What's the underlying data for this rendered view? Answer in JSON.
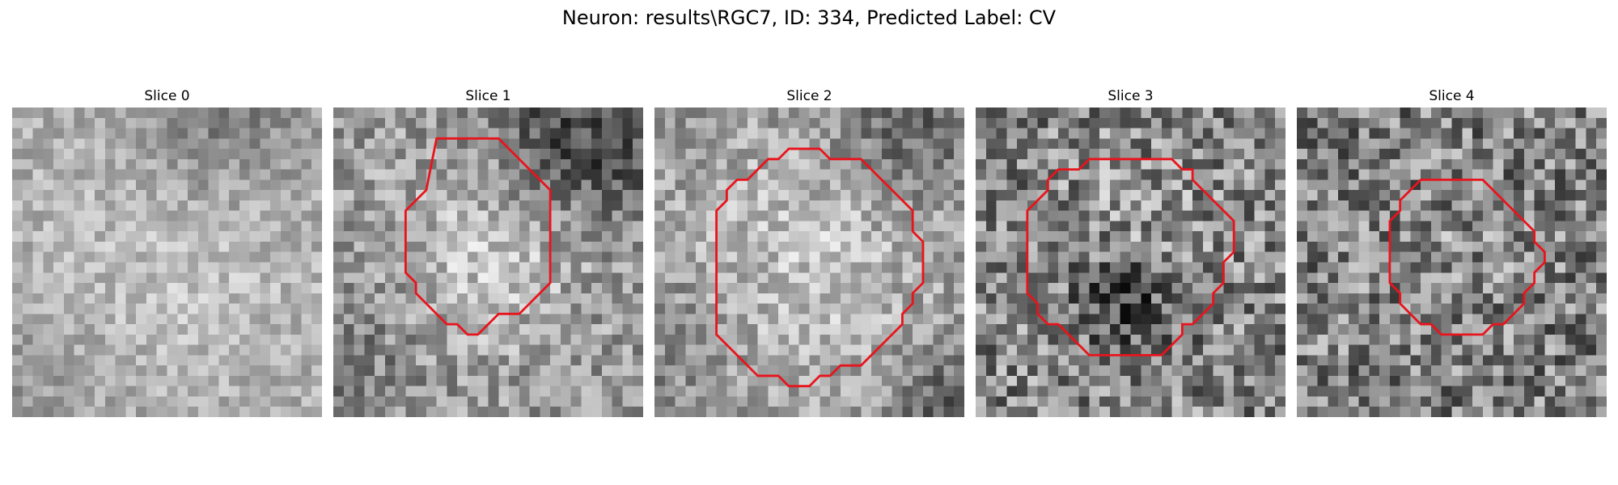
{
  "figure": {
    "title": "Neuron: results\\RGC7, ID: 334, Predicted Label: CV"
  },
  "contour_color": "#e8141c",
  "panels": [
    {
      "title": "Slice 0",
      "has_contour": false,
      "seed": 11,
      "brightness": 0.66,
      "contrast": 0.09
    },
    {
      "title": "Slice 1",
      "has_contour": true,
      "seed": 23,
      "brightness": 0.6,
      "contrast": 0.13
    },
    {
      "title": "Slice 2",
      "has_contour": true,
      "seed": 37,
      "brightness": 0.6,
      "contrast": 0.12
    },
    {
      "title": "Slice 3",
      "has_contour": true,
      "seed": 53,
      "brightness": 0.52,
      "contrast": 0.19
    },
    {
      "title": "Slice 4",
      "has_contour": true,
      "seed": 71,
      "brightness": 0.5,
      "contrast": 0.19
    }
  ]
}
